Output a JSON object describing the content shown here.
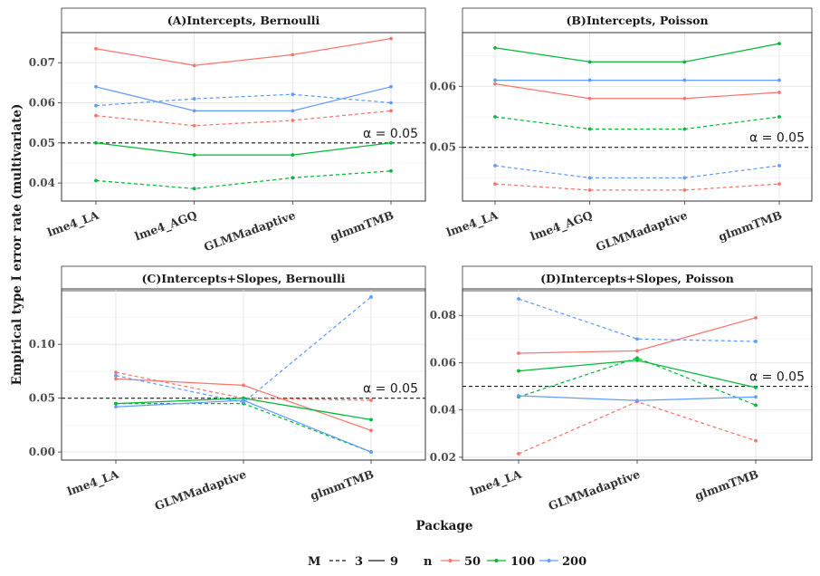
{
  "axis": {
    "xlabel": "Package",
    "ylabel": "Empirical type I error rate (multivariate)"
  },
  "alpha_label": "α = 0.05",
  "legend": {
    "m_title": "M",
    "m_items": [
      {
        "label": "3",
        "dash": "dashed"
      },
      {
        "label": "9",
        "dash": "solid"
      }
    ],
    "n_title": "n",
    "n_items": [
      {
        "label": "50",
        "color": "#F8766D"
      },
      {
        "label": "100",
        "color": "#00BA38"
      },
      {
        "label": "200",
        "color": "#619CFF"
      }
    ]
  },
  "chart_data": [
    {
      "type": "line",
      "title": "(A)Intercepts, Bernoulli",
      "categories": [
        "lme4_LA",
        "lme4_AGQ",
        "GLMMadaptive",
        "glmmTMB"
      ],
      "ylim": [
        0.0355,
        0.0775
      ],
      "yticks": [
        0.04,
        0.05,
        0.06,
        0.07
      ],
      "ytick_labels": [
        "0.04",
        "0.05",
        "0.06",
        "0.07"
      ],
      "reference_line": 0.05,
      "series": [
        {
          "n": "50",
          "M": "9",
          "values": [
            0.0735,
            0.0693,
            0.072,
            0.076
          ]
        },
        {
          "n": "50",
          "M": "3",
          "values": [
            0.0568,
            0.0543,
            0.0556,
            0.058
          ]
        },
        {
          "n": "100",
          "M": "9",
          "values": [
            0.05,
            0.047,
            0.047,
            0.05
          ]
        },
        {
          "n": "100",
          "M": "3",
          "values": [
            0.0406,
            0.0386,
            0.0413,
            0.043
          ]
        },
        {
          "n": "200",
          "M": "9",
          "values": [
            0.064,
            0.058,
            0.058,
            0.064
          ]
        },
        {
          "n": "200",
          "M": "3",
          "values": [
            0.0593,
            0.061,
            0.0621,
            0.06
          ]
        }
      ]
    },
    {
      "type": "line",
      "title": "(B)Intercepts, Poisson",
      "categories": [
        "lme4_LA",
        "lme4_AGQ",
        "GLMMadaptive",
        "glmmTMB"
      ],
      "ylim": [
        0.0412,
        0.0688
      ],
      "yticks": [
        0.05,
        0.06
      ],
      "ytick_labels": [
        "0.05",
        "0.06"
      ],
      "reference_line": 0.05,
      "series": [
        {
          "n": "50",
          "M": "9",
          "values": [
            0.0604,
            0.058,
            0.058,
            0.059
          ]
        },
        {
          "n": "50",
          "M": "3",
          "values": [
            0.044,
            0.043,
            0.043,
            0.044
          ]
        },
        {
          "n": "100",
          "M": "9",
          "values": [
            0.0663,
            0.064,
            0.064,
            0.067
          ]
        },
        {
          "n": "100",
          "M": "3",
          "values": [
            0.055,
            0.053,
            0.053,
            0.055
          ]
        },
        {
          "n": "200",
          "M": "9",
          "values": [
            0.061,
            0.061,
            0.061,
            0.061
          ]
        },
        {
          "n": "200",
          "M": "3",
          "values": [
            0.047,
            0.045,
            0.045,
            0.047
          ]
        }
      ]
    },
    {
      "type": "line",
      "title": "(C)Intercepts+Slopes, Bernoulli",
      "categories": [
        "lme4_LA",
        "GLMMadaptive",
        "glmmTMB"
      ],
      "ylim": [
        -0.0075,
        0.1515
      ],
      "yticks": [
        0.0,
        0.05,
        0.1
      ],
      "ytick_labels": [
        "0.00",
        "0.05",
        "0.10"
      ],
      "reference_line": 0.05,
      "series": [
        {
          "n": "50",
          "M": "9",
          "values": [
            0.068,
            0.062,
            0.02
          ]
        },
        {
          "n": "50",
          "M": "3",
          "values": [
            0.074,
            0.05,
            0.048
          ]
        },
        {
          "n": "100",
          "M": "9",
          "values": [
            0.045,
            0.05,
            0.03
          ]
        },
        {
          "n": "100",
          "M": "3",
          "values": [
            0.045,
            0.045,
            0.0
          ]
        },
        {
          "n": "200",
          "M": "9",
          "values": [
            0.042,
            0.048,
            0.0
          ]
        },
        {
          "n": "200",
          "M": "3",
          "values": [
            0.071,
            0.046,
            0.144
          ]
        }
      ]
    },
    {
      "type": "line",
      "title": "(D)Intercepts+Slopes, Poisson",
      "categories": [
        "lme4_LA",
        "GLMMadaptive",
        "glmmTMB"
      ],
      "ylim": [
        0.0188,
        0.0912
      ],
      "yticks": [
        0.02,
        0.04,
        0.06,
        0.08
      ],
      "ytick_labels": [
        "0.02",
        "0.04",
        "0.06",
        "0.08"
      ],
      "reference_line": 0.05,
      "series": [
        {
          "n": "50",
          "M": "9",
          "values": [
            0.064,
            0.065,
            0.079
          ]
        },
        {
          "n": "50",
          "M": "3",
          "values": [
            0.0215,
            0.0435,
            0.027
          ]
        },
        {
          "n": "100",
          "M": "9",
          "values": [
            0.0565,
            0.061,
            0.0495
          ]
        },
        {
          "n": "100",
          "M": "3",
          "values": [
            0.0455,
            0.062,
            0.042
          ]
        },
        {
          "n": "200",
          "M": "9",
          "values": [
            0.046,
            0.044,
            0.0455
          ]
        },
        {
          "n": "200",
          "M": "3",
          "values": [
            0.087,
            0.07,
            0.069
          ]
        }
      ]
    }
  ]
}
